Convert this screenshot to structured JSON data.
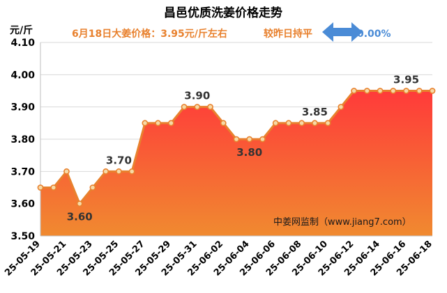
{
  "chart_data": {
    "type": "area",
    "title": "昌邑优质洗姜价格走势",
    "ylabel": "元/斤",
    "ylim": [
      3.5,
      4.1
    ],
    "yticks": [
      "3.50",
      "3.60",
      "3.70",
      "3.80",
      "3.90",
      "4.00",
      "4.10"
    ],
    "grid": true,
    "dates": [
      "25-05-19",
      "25-05-20",
      "25-05-21",
      "25-05-22",
      "25-05-23",
      "25-05-24",
      "25-05-25",
      "25-05-26",
      "25-05-27",
      "25-05-28",
      "25-05-29",
      "25-05-30",
      "25-05-31",
      "25-06-01",
      "25-06-02",
      "25-06-03",
      "25-06-04",
      "25-06-05",
      "25-06-06",
      "25-06-07",
      "25-06-08",
      "25-06-09",
      "25-06-10",
      "25-06-11",
      "25-06-12",
      "25-06-13",
      "25-06-14",
      "25-06-15",
      "25-06-16",
      "25-06-17",
      "25-06-18"
    ],
    "xtick_labels": [
      "25-05-19",
      "25-05-21",
      "25-05-23",
      "25-05-25",
      "25-05-27",
      "25-05-29",
      "25-05-31",
      "25-06-02",
      "25-06-04",
      "25-06-06",
      "25-06-08",
      "25-06-10",
      "25-06-12",
      "25-06-14",
      "25-06-16",
      "25-06-18"
    ],
    "values": [
      3.65,
      3.65,
      3.7,
      3.6,
      3.65,
      3.7,
      3.7,
      3.7,
      3.85,
      3.85,
      3.85,
      3.9,
      3.9,
      3.9,
      3.85,
      3.8,
      3.8,
      3.8,
      3.85,
      3.85,
      3.85,
      3.85,
      3.85,
      3.9,
      3.95,
      3.95,
      3.95,
      3.95,
      3.95,
      3.95,
      3.95
    ],
    "data_labels": [
      {
        "index": 3,
        "text": "3.60",
        "place": "below"
      },
      {
        "index": 6,
        "text": "3.70",
        "place": "above"
      },
      {
        "index": 12,
        "text": "3.90",
        "place": "above"
      },
      {
        "index": 16,
        "text": "3.80",
        "place": "below"
      },
      {
        "index": 21,
        "text": "3.85",
        "place": "above"
      },
      {
        "index": 28,
        "text": "3.95",
        "place": "above"
      }
    ],
    "colors": {
      "line": "#E8812E",
      "marker_fill": "#F6D9A6",
      "area_top": "#FF3A3A",
      "area_bottom": "#F08A30",
      "grid": "#D9D9D9",
      "title": "#000000",
      "subtitle": "#E8812E",
      "arrow": "#4A8BD6",
      "label": "#333333"
    }
  },
  "subtitle": {
    "price_text": "6月18日大姜价格：3.95元/斤左右",
    "change_label": "较昨日持平",
    "change_value": "0.00%"
  },
  "watermark": "中姜网监制（www.jiang7.com）"
}
